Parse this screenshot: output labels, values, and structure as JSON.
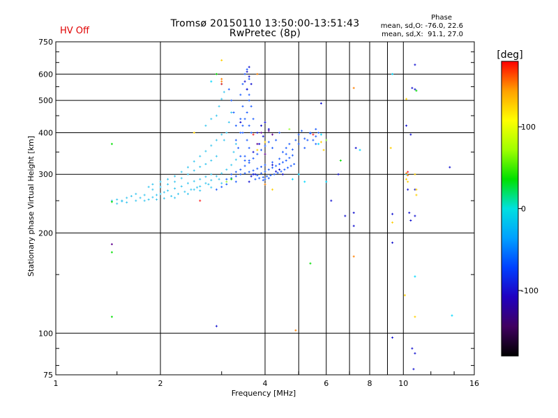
{
  "status": {
    "hv_label": "HV Off",
    "hv_color": "#e00000"
  },
  "header": {
    "title_line1": "Tromsø 20150110 13:50:00-13:51:43",
    "title_line2": "RwPretec (8p)"
  },
  "stats": {
    "heading": "Phase",
    "line_o": "mean, sd,O: -76.0, 22.6",
    "line_x": "mean, sd,X:  91.1, 27.0"
  },
  "chart_data": {
    "type": "scatter",
    "xlabel": "Frequency [MHz]",
    "ylabel": "Stationary phase Virtual Height [km]",
    "x_scale": "log",
    "y_scale": "log",
    "xlim": [
      1,
      16
    ],
    "ylim": [
      75,
      750
    ],
    "x_ticks": [
      1,
      2,
      4,
      6,
      8,
      10,
      16
    ],
    "x_tick_labels": [
      "1",
      "2",
      "4",
      "6",
      "8",
      "10",
      "16"
    ],
    "y_ticks": [
      75,
      100,
      200,
      300,
      400,
      500,
      600,
      750
    ],
    "y_tick_labels": [
      "75",
      "100",
      "200",
      "300",
      "400",
      "500",
      "600",
      "750"
    ],
    "grid": true,
    "colorbar": {
      "label": "[deg]",
      "range": [
        -180,
        180
      ],
      "ticks": [
        100,
        0,
        -100
      ],
      "tick_labels": [
        "100",
        "0",
        "-100"
      ],
      "colors": [
        "#000000",
        "#400060",
        "#2000c0",
        "#0040ff",
        "#00a0ff",
        "#00e0e0",
        "#00e000",
        "#a0ff00",
        "#ffff00",
        "#ffa000",
        "#ff0000"
      ]
    },
    "series": [
      {
        "color": "#40c8f0",
        "points": [
          [
            1.45,
            250
          ],
          [
            1.5,
            252
          ],
          [
            1.55,
            249
          ],
          [
            1.6,
            255
          ],
          [
            1.65,
            258
          ],
          [
            1.7,
            262
          ],
          [
            1.75,
            255
          ],
          [
            1.8,
            250
          ],
          [
            1.85,
            252
          ],
          [
            1.9,
            256
          ],
          [
            1.95,
            260
          ],
          [
            2.0,
            262
          ],
          [
            2.05,
            265
          ],
          [
            2.1,
            268
          ],
          [
            2.2,
            272
          ],
          [
            2.3,
            276
          ],
          [
            2.4,
            282
          ],
          [
            2.5,
            286
          ],
          [
            2.6,
            290
          ],
          [
            2.7,
            295
          ],
          [
            2.8,
            300
          ],
          [
            1.8,
            260
          ],
          [
            1.9,
            270
          ],
          [
            2.0,
            275
          ],
          [
            2.1,
            280
          ],
          [
            2.2,
            285
          ],
          [
            2.3,
            292
          ],
          [
            2.4,
            300
          ],
          [
            2.5,
            308
          ],
          [
            2.6,
            316
          ],
          [
            2.7,
            322
          ],
          [
            2.8,
            330
          ],
          [
            2.9,
            340
          ],
          [
            2.2,
            296
          ],
          [
            2.3,
            305
          ],
          [
            2.4,
            315
          ],
          [
            2.5,
            328
          ],
          [
            2.6,
            340
          ],
          [
            2.7,
            352
          ],
          [
            2.8,
            366
          ],
          [
            2.9,
            380
          ],
          [
            3.0,
            395
          ],
          [
            2.5,
            270
          ],
          [
            2.6,
            276
          ],
          [
            2.7,
            282
          ],
          [
            2.8,
            288
          ],
          [
            2.9,
            296
          ],
          [
            3.0,
            302
          ],
          [
            3.1,
            310
          ],
          [
            3.2,
            320
          ],
          [
            3.3,
            332
          ],
          [
            2.2,
            255
          ],
          [
            2.4,
            262
          ],
          [
            2.6,
            268
          ],
          [
            2.8,
            274
          ],
          [
            3.0,
            282
          ],
          [
            1.95,
            252
          ],
          [
            2.05,
            254
          ],
          [
            2.15,
            258
          ],
          [
            2.25,
            262
          ],
          [
            2.35,
            266
          ],
          [
            2.45,
            270
          ],
          [
            2.55,
            274
          ],
          [
            2.75,
            280
          ],
          [
            2.95,
            290
          ],
          [
            3.05,
            380
          ],
          [
            3.1,
            400
          ],
          [
            3.15,
            430
          ],
          [
            3.2,
            460
          ],
          [
            3.25,
            350
          ],
          [
            3.3,
            370
          ],
          [
            2.9,
            450
          ],
          [
            2.95,
            480
          ],
          [
            3.0,
            505
          ],
          [
            3.05,
            530
          ],
          [
            2.7,
            420
          ],
          [
            2.8,
            440
          ],
          [
            1.5,
            245
          ],
          [
            1.55,
            250
          ],
          [
            1.6,
            247
          ],
          [
            1.7,
            250
          ],
          [
            2.1,
            290
          ],
          [
            2.0,
            285
          ],
          [
            1.9,
            280
          ],
          [
            1.85,
            275
          ]
        ]
      },
      {
        "color": "#2060ff",
        "points": [
          [
            3.2,
            300
          ],
          [
            3.3,
            305
          ],
          [
            3.4,
            310
          ],
          [
            3.5,
            318
          ],
          [
            3.6,
            325
          ],
          [
            3.7,
            335
          ],
          [
            3.8,
            345
          ],
          [
            3.9,
            355
          ],
          [
            4.0,
            365
          ],
          [
            4.1,
            375
          ],
          [
            3.1,
            290
          ],
          [
            3.2,
            292
          ],
          [
            3.3,
            296
          ],
          [
            3.4,
            300
          ],
          [
            3.5,
            302
          ],
          [
            3.6,
            305
          ],
          [
            3.7,
            308
          ],
          [
            3.8,
            312
          ],
          [
            3.9,
            316
          ],
          [
            4.0,
            320
          ],
          [
            4.2,
            326
          ],
          [
            4.4,
            334
          ],
          [
            4.6,
            345
          ],
          [
            4.8,
            356
          ],
          [
            5.0,
            370
          ],
          [
            5.2,
            384
          ],
          [
            5.4,
            398
          ],
          [
            5.6,
            410
          ],
          [
            3.5,
            340
          ],
          [
            3.55,
            380
          ],
          [
            3.6,
            420
          ],
          [
            3.55,
            460
          ],
          [
            3.6,
            500
          ],
          [
            3.55,
            540
          ],
          [
            3.6,
            580
          ],
          [
            3.55,
            620
          ],
          [
            3.5,
            600
          ],
          [
            3.45,
            560
          ],
          [
            3.4,
            520
          ],
          [
            3.45,
            480
          ],
          [
            3.4,
            440
          ],
          [
            3.45,
            400
          ],
          [
            3.35,
            360
          ],
          [
            3.3,
            420
          ],
          [
            3.25,
            460
          ],
          [
            3.2,
            500
          ],
          [
            3.15,
            540
          ],
          [
            3.3,
            380
          ],
          [
            3.4,
            340
          ],
          [
            3.5,
            330
          ],
          [
            3.6,
            360
          ],
          [
            3.65,
            400
          ],
          [
            3.7,
            440
          ],
          [
            3.65,
            480
          ],
          [
            3.6,
            520
          ],
          [
            3.5,
            440
          ],
          [
            3.4,
            400
          ],
          [
            3.45,
            420
          ],
          [
            3.6,
            330
          ],
          [
            3.7,
            300
          ],
          [
            3.8,
            298
          ],
          [
            3.9,
            302
          ],
          [
            4.0,
            306
          ],
          [
            4.1,
            310
          ],
          [
            4.2,
            314
          ],
          [
            4.3,
            318
          ],
          [
            4.4,
            322
          ],
          [
            4.5,
            326
          ],
          [
            4.6,
            330
          ],
          [
            4.7,
            336
          ],
          [
            4.8,
            342
          ],
          [
            3.75,
            290
          ],
          [
            3.85,
            292
          ],
          [
            3.95,
            294
          ],
          [
            4.05,
            296
          ],
          [
            4.15,
            298
          ],
          [
            4.25,
            300
          ],
          [
            4.35,
            303
          ],
          [
            4.45,
            306
          ],
          [
            4.55,
            310
          ],
          [
            4.65,
            314
          ],
          [
            4.75,
            318
          ],
          [
            4.85,
            322
          ],
          [
            4.2,
            360
          ],
          [
            4.3,
            380
          ],
          [
            4.4,
            400
          ],
          [
            4.5,
            350
          ],
          [
            4.6,
            360
          ],
          [
            4.7,
            370
          ],
          [
            5.2,
            360
          ],
          [
            5.3,
            380
          ],
          [
            5.4,
            400
          ],
          [
            5.5,
            380
          ],
          [
            5.6,
            370
          ],
          [
            5.7,
            400
          ],
          [
            4.0,
            290
          ],
          [
            4.1,
            292
          ],
          [
            3.95,
            288
          ],
          [
            2.9,
            270
          ],
          [
            3.0,
            275
          ],
          [
            3.1,
            280
          ],
          [
            3.3,
            285
          ],
          [
            5.6,
            390
          ],
          [
            4.9,
            380
          ],
          [
            5.0,
            395
          ],
          [
            5.1,
            405
          ]
        ]
      },
      {
        "color": "#1010d0",
        "points": [
          [
            3.6,
            630
          ],
          [
            3.55,
            610
          ],
          [
            3.6,
            590
          ],
          [
            3.65,
            560
          ],
          [
            3.5,
            570
          ],
          [
            3.55,
            540
          ],
          [
            3.9,
            420
          ],
          [
            4.0,
            430
          ],
          [
            3.8,
            400
          ],
          [
            3.95,
            390
          ],
          [
            4.1,
            410
          ],
          [
            3.85,
            370
          ],
          [
            3.7,
            300
          ],
          [
            3.65,
            296
          ],
          [
            3.75,
            300
          ],
          [
            4.4,
            310
          ],
          [
            4.3,
            306
          ],
          [
            6.5,
            300
          ],
          [
            7.2,
            230
          ],
          [
            7.2,
            210
          ],
          [
            6.8,
            225
          ],
          [
            9.3,
            228
          ],
          [
            9.3,
            187
          ],
          [
            9.3,
            97
          ],
          [
            10.4,
            230
          ],
          [
            10.5,
            218
          ],
          [
            10.6,
            545
          ],
          [
            10.8,
            540
          ],
          [
            10.8,
            640
          ],
          [
            10.2,
            420
          ],
          [
            10.3,
            270
          ],
          [
            10.5,
            395
          ],
          [
            10.8,
            270
          ],
          [
            10.8,
            225
          ],
          [
            10.8,
            87
          ],
          [
            10.7,
            78
          ],
          [
            10.6,
            90
          ],
          [
            13.6,
            315
          ],
          [
            2.9,
            105
          ],
          [
            3.6,
            285
          ],
          [
            3.4,
            430
          ],
          [
            3.7,
            350
          ],
          [
            4.2,
            320
          ],
          [
            4.5,
            300
          ],
          [
            6.2,
            250
          ],
          [
            5.8,
            490
          ],
          [
            7.3,
            360
          ]
        ]
      },
      {
        "color": "#00d8ff",
        "points": [
          [
            5.0,
            300
          ],
          [
            5.2,
            285
          ],
          [
            5.7,
            370
          ],
          [
            5.8,
            395
          ],
          [
            6.0,
            285
          ],
          [
            7.5,
            355
          ],
          [
            9.3,
            600
          ],
          [
            10.8,
            148
          ],
          [
            10.2,
            300
          ],
          [
            13.8,
            113
          ],
          [
            4.8,
            290
          ],
          [
            3.0,
            560
          ],
          [
            2.8,
            570
          ]
        ]
      },
      {
        "color": "#ffd000",
        "points": [
          [
            2.5,
            400
          ],
          [
            3.0,
            660
          ],
          [
            3.8,
            355
          ],
          [
            4.0,
            375
          ],
          [
            5.8,
            375
          ],
          [
            5.9,
            355
          ],
          [
            9.2,
            360
          ],
          [
            9.3,
            215
          ],
          [
            10.2,
            505
          ],
          [
            10.3,
            285
          ],
          [
            10.8,
            300
          ],
          [
            10.9,
            270
          ],
          [
            10.9,
            260
          ],
          [
            10.8,
            112
          ],
          [
            4.2,
            270
          ],
          [
            10.1,
            130
          ],
          [
            10.2,
            290
          ]
        ]
      },
      {
        "color": "#ff8000",
        "points": [
          [
            3.0,
            580
          ],
          [
            3.0,
            570
          ],
          [
            4.0,
            280
          ],
          [
            4.9,
            102
          ],
          [
            7.2,
            545
          ],
          [
            7.2,
            170
          ],
          [
            10.2,
            302
          ],
          [
            10.3,
            298
          ],
          [
            3.8,
            600
          ]
        ]
      },
      {
        "color": "#ff2020",
        "points": [
          [
            3.0,
            560
          ],
          [
            2.6,
            250
          ],
          [
            3.7,
            395
          ],
          [
            10.3,
            305
          ],
          [
            5.5,
            395
          ]
        ]
      },
      {
        "color": "#00e000",
        "points": [
          [
            1.45,
            370
          ],
          [
            1.45,
            248
          ],
          [
            1.45,
            175
          ],
          [
            1.45,
            112
          ],
          [
            2.9,
            600
          ],
          [
            5.4,
            162
          ],
          [
            6.6,
            330
          ],
          [
            10.9,
            535
          ],
          [
            3.2,
            290
          ]
        ]
      },
      {
        "color": "#a0ff40",
        "points": [
          [
            3.1,
            285
          ],
          [
            4.7,
            410
          ],
          [
            6.0,
            380
          ]
        ]
      },
      {
        "color": "#600090",
        "points": [
          [
            1.45,
            185
          ],
          [
            3.8,
            370
          ],
          [
            4.0,
            345
          ],
          [
            3.9,
            400
          ],
          [
            4.2,
            395
          ],
          [
            4.1,
            405
          ]
        ]
      }
    ]
  }
}
